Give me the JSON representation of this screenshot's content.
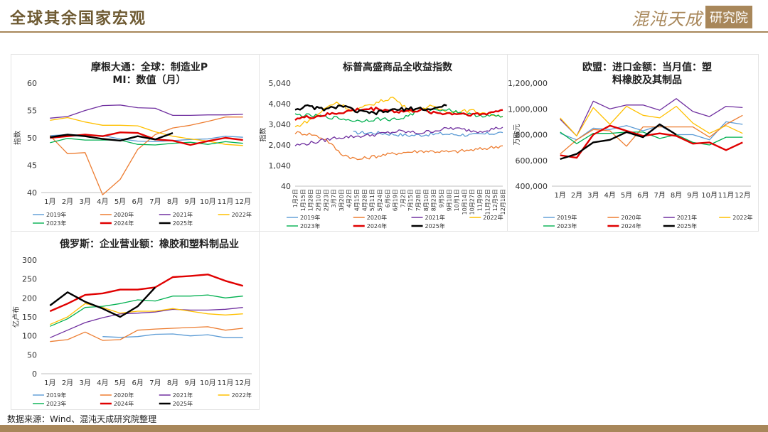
{
  "header": {
    "title": "全球其余国家宏观",
    "logo_script": "混沌天成",
    "logo_box": "研究院"
  },
  "footer": {
    "source": "数据来源：Wind、混沌天成研究院整理"
  },
  "chart_data": [
    {
      "type": "line",
      "title": "摩根大通：全球：制造业PMI：数值（月）",
      "ylabel": "指数",
      "ylim": [
        40,
        60
      ],
      "yticks": [
        "40",
        "45",
        "50",
        "55",
        "60"
      ],
      "categories": [
        "1月",
        "2月",
        "3月",
        "4月",
        "5月",
        "6月",
        "7月",
        "8月",
        "9月",
        "10月",
        "11月",
        "12月"
      ],
      "legend": "bottom",
      "series": [
        {
          "name": "2019年",
          "color": "#5b9bd5",
          "width": 1,
          "values": [
            50.4,
            50.6,
            50.5,
            50.4,
            49.8,
            49.4,
            49.3,
            49.5,
            49.7,
            49.8,
            50.3,
            50.1
          ]
        },
        {
          "name": "2020年",
          "color": "#ed7d31",
          "width": 1,
          "values": [
            50.4,
            47.1,
            47.3,
            39.6,
            42.4,
            47.9,
            50.6,
            51.8,
            52.3,
            53.0,
            53.8,
            53.8
          ]
        },
        {
          "name": "2021年",
          "color": "#7030a0",
          "width": 1,
          "values": [
            53.6,
            53.9,
            55.0,
            55.9,
            56.0,
            55.5,
            55.4,
            54.1,
            54.1,
            54.2,
            54.2,
            54.3
          ]
        },
        {
          "name": "2022年",
          "color": "#ffc000",
          "width": 1,
          "values": [
            53.2,
            53.7,
            52.9,
            52.3,
            52.3,
            52.2,
            51.1,
            50.3,
            49.8,
            49.4,
            48.8,
            48.6
          ]
        },
        {
          "name": "2023年",
          "color": "#00b050",
          "width": 1,
          "values": [
            49.1,
            49.9,
            49.6,
            49.6,
            49.6,
            48.8,
            48.7,
            49.0,
            49.2,
            48.8,
            49.3,
            49.0
          ]
        },
        {
          "name": "2024年",
          "color": "#e00000",
          "width": 2,
          "values": [
            50.0,
            50.3,
            50.6,
            50.3,
            51.0,
            50.9,
            49.7,
            49.5,
            48.7,
            49.4,
            50.0,
            49.6
          ]
        },
        {
          "name": "2025年",
          "color": "#000000",
          "width": 2,
          "values": [
            50.1,
            50.6,
            50.3,
            49.8,
            49.5,
            50.3,
            49.7,
            50.9,
            null,
            null,
            null,
            null
          ]
        }
      ]
    },
    {
      "type": "line",
      "title": "标普高盛商品全收益指数",
      "ylabel": "指数",
      "ylim": [
        40,
        5040
      ],
      "yticks": [
        "40",
        "1,040",
        "2,040",
        "3,040",
        "4,040",
        "5,040"
      ],
      "x_tick_labels": [
        "1月2日",
        "1月15日",
        "1月28日",
        "2月10日",
        "2月23日",
        "3月7日",
        "3月20日",
        "4月2日",
        "4月15日",
        "4月28日",
        "5月11日",
        "5月24日",
        "6月6日",
        "6月19日",
        "7月2日",
        "7月15日",
        "7月28日",
        "8月10日",
        "8月23日",
        "9月5日",
        "9月18日",
        "10月1日",
        "10月14日",
        "10月27日",
        "11月9日",
        "11月22日",
        "12月5日",
        "12月18日"
      ],
      "legend": "bottom",
      "series": [
        {
          "name": "2019年",
          "color": "#5b9bd5",
          "width": 1,
          "knots": [
            [
              0.28,
              2640
            ],
            [
              0.4,
              2620
            ],
            [
              0.55,
              2500
            ],
            [
              0.7,
              2580
            ],
            [
              0.85,
              2520
            ],
            [
              1.0,
              2640
            ]
          ]
        },
        {
          "name": "2020年",
          "color": "#ed7d31",
          "width": 1,
          "knots": [
            [
              0,
              2640
            ],
            [
              0.08,
              2560
            ],
            [
              0.15,
              2300
            ],
            [
              0.22,
              1620
            ],
            [
              0.3,
              1330
            ],
            [
              0.38,
              1480
            ],
            [
              0.5,
              1660
            ],
            [
              0.62,
              1750
            ],
            [
              0.75,
              1700
            ],
            [
              0.88,
              1820
            ],
            [
              1.0,
              2000
            ]
          ]
        },
        {
          "name": "2021年",
          "color": "#7030a0",
          "width": 1,
          "knots": [
            [
              0,
              2020
            ],
            [
              0.1,
              2180
            ],
            [
              0.2,
              2400
            ],
            [
              0.35,
              2500
            ],
            [
              0.5,
              2700
            ],
            [
              0.6,
              2620
            ],
            [
              0.75,
              2860
            ],
            [
              0.88,
              2700
            ],
            [
              1.0,
              2900
            ]
          ]
        },
        {
          "name": "2022年",
          "color": "#ffc000",
          "width": 1,
          "knots": [
            [
              0,
              2900
            ],
            [
              0.08,
              3300
            ],
            [
              0.15,
              3850
            ],
            [
              0.2,
              4120
            ],
            [
              0.28,
              3680
            ],
            [
              0.38,
              4050
            ],
            [
              0.47,
              4350
            ],
            [
              0.55,
              3700
            ],
            [
              0.65,
              3900
            ],
            [
              0.75,
              3640
            ],
            [
              0.85,
              3700
            ],
            [
              1.0,
              3440
            ]
          ]
        },
        {
          "name": "2023年",
          "color": "#00b050",
          "width": 1,
          "knots": [
            [
              0,
              3500
            ],
            [
              0.1,
              3450
            ],
            [
              0.2,
              3350
            ],
            [
              0.3,
              3200
            ],
            [
              0.4,
              3300
            ],
            [
              0.5,
              3280
            ],
            [
              0.6,
              3700
            ],
            [
              0.72,
              3780
            ],
            [
              0.85,
              3500
            ],
            [
              1.0,
              3420
            ]
          ]
        },
        {
          "name": "2024年",
          "color": "#e00000",
          "width": 2,
          "knots": [
            [
              0,
              3320
            ],
            [
              0.1,
              3420
            ],
            [
              0.2,
              3580
            ],
            [
              0.3,
              3750
            ],
            [
              0.4,
              3800
            ],
            [
              0.5,
              3650
            ],
            [
              0.6,
              3720
            ],
            [
              0.7,
              3580
            ],
            [
              0.8,
              3560
            ],
            [
              0.9,
              3520
            ],
            [
              1.0,
              3740
            ]
          ]
        },
        {
          "name": "2025年",
          "color": "#000000",
          "width": 2,
          "knots": [
            [
              0,
              3780
            ],
            [
              0.06,
              3900
            ],
            [
              0.15,
              3760
            ],
            [
              0.22,
              3960
            ],
            [
              0.3,
              3660
            ],
            [
              0.38,
              3580
            ],
            [
              0.48,
              3740
            ],
            [
              0.58,
              3820
            ],
            [
              0.65,
              3760
            ],
            [
              0.73,
              3950
            ]
          ]
        }
      ]
    },
    {
      "type": "line",
      "title": "欧盟：进口金额：当月值：塑料橡胶及其制品",
      "ylabel": "万欧元",
      "ylim": [
        400000,
        1200000
      ],
      "yticks": [
        "400,000",
        "600,000",
        "800,000",
        "1,000,000",
        "1,200,000"
      ],
      "categories": [
        "1月",
        "2月",
        "3月",
        "4月",
        "5月",
        "6月",
        "7月",
        "8月",
        "9月",
        "10月",
        "11月",
        "12月"
      ],
      "legend": "bottom",
      "series": [
        {
          "name": "2019年",
          "color": "#5b9bd5",
          "width": 1,
          "values": [
            810000,
            760000,
            850000,
            840000,
            870000,
            830000,
            870000,
            800000,
            800000,
            760000,
            900000,
            880000
          ]
        },
        {
          "name": "2020年",
          "color": "#ed7d31",
          "width": 1,
          "values": [
            650000,
            760000,
            840000,
            830000,
            710000,
            860000,
            860000,
            860000,
            860000,
            780000,
            880000,
            950000
          ]
        },
        {
          "name": "2021年",
          "color": "#7030a0",
          "width": 1,
          "values": [
            920000,
            790000,
            1060000,
            1000000,
            1030000,
            1030000,
            990000,
            1080000,
            980000,
            940000,
            1020000,
            1010000
          ]
        },
        {
          "name": "2022年",
          "color": "#ffc000",
          "width": 1,
          "values": [
            930000,
            790000,
            1010000,
            880000,
            1020000,
            950000,
            930000,
            1020000,
            890000,
            810000,
            870000,
            810000
          ]
        },
        {
          "name": "2023年",
          "color": "#00b050",
          "width": 1,
          "values": [
            820000,
            730000,
            810000,
            810000,
            820000,
            820000,
            770000,
            800000,
            740000,
            720000,
            780000,
            780000
          ]
        },
        {
          "name": "2024年",
          "color": "#e00000",
          "width": 2,
          "values": [
            640000,
            620000,
            800000,
            870000,
            830000,
            790000,
            810000,
            790000,
            730000,
            740000,
            680000,
            740000
          ]
        },
        {
          "name": "2025年",
          "color": "#000000",
          "width": 2,
          "values": [
            610000,
            650000,
            740000,
            760000,
            820000,
            780000,
            880000,
            800000,
            null,
            null,
            null,
            null
          ]
        }
      ]
    },
    {
      "type": "line",
      "title": "俄罗斯：企业营业额：橡胶和塑料制品业",
      "ylabel": "亿卢布",
      "ylim": [
        0,
        300
      ],
      "yticks": [
        "0",
        "50",
        "100",
        "150",
        "200",
        "250",
        "300"
      ],
      "categories": [
        "1月",
        "2月",
        "3月",
        "4月",
        "5月",
        "6月",
        "7月",
        "8月",
        "9月",
        "10月",
        "11月",
        "12月"
      ],
      "legend": "bottom",
      "series": [
        {
          "name": "2019年",
          "color": "#5b9bd5",
          "width": 1,
          "values": [
            null,
            null,
            null,
            98,
            96,
            98,
            104,
            105,
            100,
            103,
            95,
            95
          ]
        },
        {
          "name": "2020年",
          "color": "#ed7d31",
          "width": 1,
          "values": [
            85,
            90,
            110,
            88,
            90,
            115,
            118,
            120,
            122,
            124,
            115,
            120
          ]
        },
        {
          "name": "2021年",
          "color": "#7030a0",
          "width": 1,
          "values": [
            95,
            115,
            135,
            148,
            158,
            160,
            163,
            170,
            168,
            168,
            170,
            175
          ]
        },
        {
          "name": "2022年",
          "color": "#ffc000",
          "width": 1,
          "values": [
            130,
            150,
            185,
            175,
            160,
            165,
            165,
            172,
            165,
            158,
            155,
            158
          ]
        },
        {
          "name": "2023年",
          "color": "#00b050",
          "width": 1,
          "values": [
            125,
            145,
            175,
            178,
            185,
            195,
            192,
            205,
            205,
            208,
            200,
            205
          ]
        },
        {
          "name": "2024年",
          "color": "#e00000",
          "width": 2,
          "values": [
            165,
            185,
            208,
            212,
            222,
            222,
            228,
            255,
            258,
            262,
            245,
            232
          ]
        },
        {
          "name": "2025年",
          "color": "#000000",
          "width": 2,
          "values": [
            180,
            215,
            190,
            172,
            150,
            178,
            228,
            null,
            null,
            null,
            null,
            null
          ]
        }
      ]
    }
  ]
}
